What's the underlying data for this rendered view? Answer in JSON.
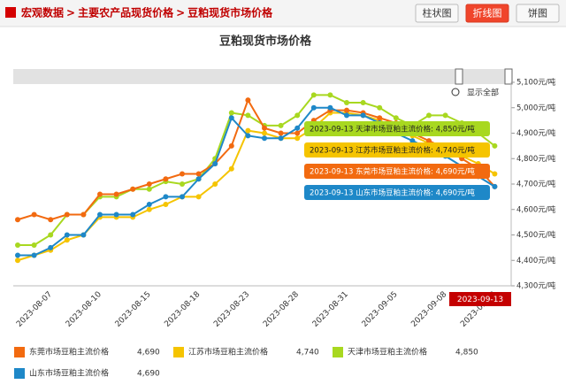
{
  "header": {
    "breadcrumb": [
      "宏观数据",
      "主要农产品现货价格",
      "豆粕现货市场价格"
    ],
    "separator": ">",
    "buttons": [
      "柱状图",
      "折线图",
      "饼图"
    ],
    "active_button": 1
  },
  "chart_data": {
    "type": "line",
    "title": "豆粕现货市场价格",
    "reset_label": "显示全部",
    "categories": [
      null,
      null,
      "2023-08-07",
      null,
      null,
      "2023-08-10",
      null,
      null,
      "2023-08-15",
      null,
      null,
      "2023-08-18",
      null,
      null,
      "2023-08-23",
      null,
      null,
      "2023-08-28",
      null,
      null,
      "2023-08-31",
      null,
      null,
      "2023-09-05",
      null,
      null,
      "2023-09-08",
      null,
      null,
      "2023-09-13"
    ],
    "ylim": [
      4300,
      5100
    ],
    "yticks": [
      {
        "value": 4300,
        "label": "4,300元/吨"
      },
      {
        "value": 4400,
        "label": "4,400元/吨"
      },
      {
        "value": 4500,
        "label": "4,500元/吨"
      },
      {
        "value": 4600,
        "label": "4,600元/吨"
      },
      {
        "value": 4700,
        "label": "4,700元/吨"
      },
      {
        "value": 4800,
        "label": "4,800元/吨"
      },
      {
        "value": 4900,
        "label": "4,900元/吨"
      },
      {
        "value": 5000,
        "label": "5,000元/吨"
      },
      {
        "value": 5100,
        "label": "5,100元/吨"
      }
    ],
    "series": [
      {
        "name": "东莞市场豆粕主流价格",
        "color": "#f26a10",
        "last_label": "4,690",
        "values": [
          4560,
          4580,
          4560,
          4580,
          4580,
          4660,
          4660,
          4680,
          4700,
          4720,
          4740,
          4740,
          4780,
          4850,
          5030,
          4920,
          4900,
          4900,
          4950,
          4990,
          4990,
          4980,
          4960,
          4940,
          4900,
          4870,
          4840,
          4800,
          4760,
          4690
        ]
      },
      {
        "name": "江苏市场豆粕主流价格",
        "color": "#f5c400",
        "last_label": "4,740",
        "values": [
          4400,
          4420,
          4440,
          4480,
          4500,
          4570,
          4570,
          4570,
          4600,
          4620,
          4650,
          4650,
          4700,
          4760,
          4910,
          4900,
          4880,
          4880,
          4920,
          4980,
          4980,
          4970,
          4950,
          4920,
          4890,
          4860,
          4840,
          4810,
          4780,
          4740
        ]
      },
      {
        "name": "天津市场豆粕主流价格",
        "color": "#a8d820",
        "last_label": "4,850",
        "values": [
          4460,
          4460,
          4500,
          4580,
          4580,
          4650,
          4650,
          4680,
          4680,
          4710,
          4700,
          4720,
          4800,
          4980,
          4970,
          4930,
          4930,
          4970,
          5050,
          5050,
          5020,
          5020,
          5000,
          4960,
          4930,
          4970,
          4970,
          4940,
          4900,
          4850
        ]
      },
      {
        "name": "山东市场豆粕主流价格",
        "color": "#1e88c8",
        "last_label": "4,690",
        "values": [
          4420,
          4420,
          4450,
          4500,
          4500,
          4580,
          4580,
          4580,
          4620,
          4650,
          4650,
          4720,
          4780,
          4960,
          4890,
          4880,
          4880,
          4920,
          5000,
          5000,
          4970,
          4970,
          4940,
          4900,
          4870,
          4840,
          4810,
          4770,
          4730,
          4690
        ]
      }
    ],
    "tooltip": {
      "date": "2023-09-13",
      "lines": [
        {
          "text": "2023-09-13 天津市场豆粕主流价格: 4,850元/吨",
          "series": 2
        },
        {
          "text": "2023-09-13 江苏市场豆粕主流价格: 4,740元/吨",
          "series": 1
        },
        {
          "text": "2023-09-13 东莞市场豆粕主流价格: 4,690元/吨",
          "series": 0
        },
        {
          "text": "2023-09-13 山东市场豆粕主流价格: 4,690元/吨",
          "series": 3
        }
      ]
    }
  }
}
